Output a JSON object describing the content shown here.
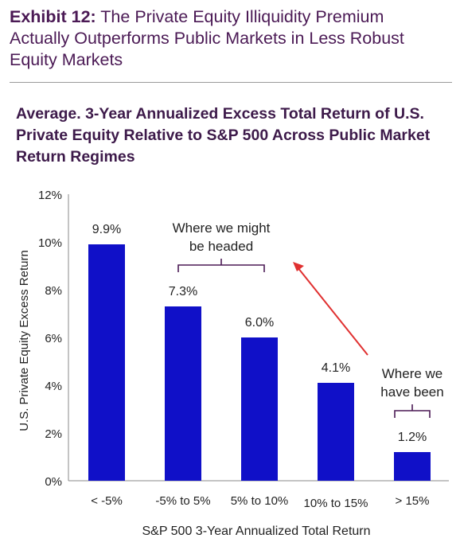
{
  "header": {
    "exhibit_label": "Exhibit 12:",
    "exhibit_title": " The Private Equity Illiquidity Premium Actually Outperforms Public Markets in Less Robust Equity Markets"
  },
  "chart_data": {
    "type": "bar",
    "title": "Average. 3-Year Annualized Excess Total Return of U.S. Private Equity Relative to S&P 500 Across Public Market Return Regimes",
    "xlabel": "S&P 500 3-Year Annualized Total Return",
    "ylabel": "U.S. Private Equity Excess Return",
    "categories": [
      "< -5%",
      "-5% to 5%",
      "5% to 10%",
      "10% to 15%",
      "> 15%"
    ],
    "values": [
      9.9,
      7.3,
      6.0,
      4.1,
      1.2
    ],
    "value_labels": [
      "9.9%",
      "7.3%",
      "6.0%",
      "4.1%",
      "1.2%"
    ],
    "ylim": [
      0,
      12
    ],
    "yticks": [
      0,
      2,
      4,
      6,
      8,
      10,
      12
    ],
    "ytick_labels": [
      "0%",
      "2%",
      "4%",
      "6%",
      "8%",
      "10%",
      "12%"
    ],
    "grid": false,
    "legend": "none",
    "bar_color": "#1010c8",
    "annotations": [
      {
        "lines": [
          "Where we might",
          "be headed"
        ],
        "spans_categories": [
          1,
          2
        ]
      },
      {
        "lines": [
          "Where we",
          "have been"
        ],
        "spans_categories": [
          4,
          4
        ]
      }
    ],
    "arrow_color": "#e03030"
  }
}
